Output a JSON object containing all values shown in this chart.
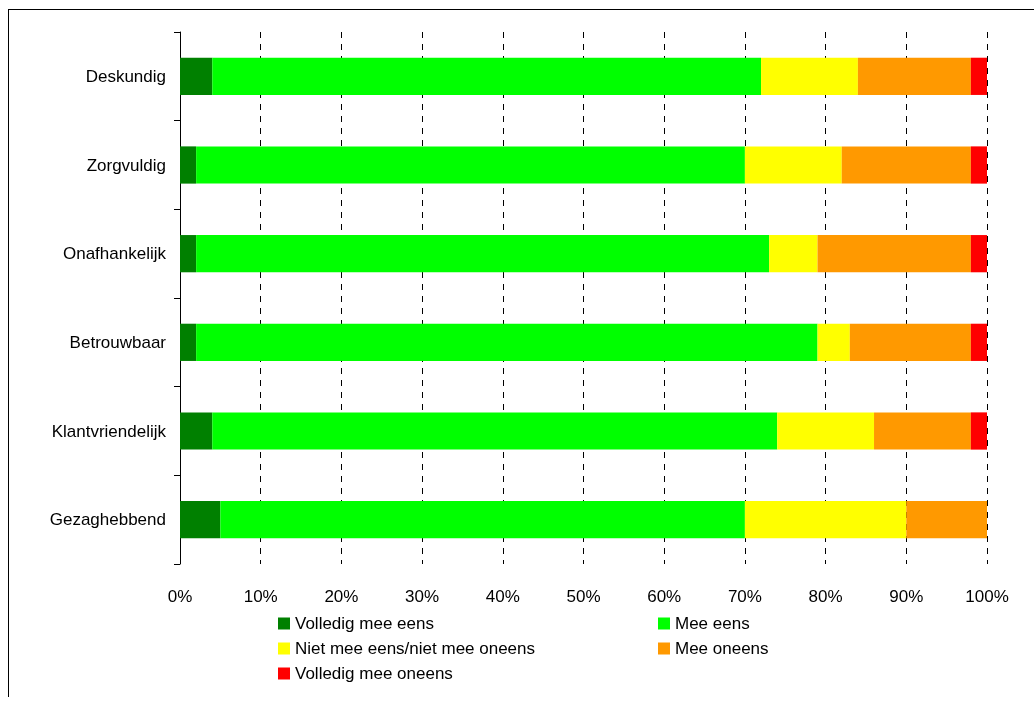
{
  "chart_data": {
    "type": "bar",
    "orientation": "horizontal",
    "stacked": true,
    "categories": [
      "Deskundig",
      "Zorgvuldig",
      "Onafhankelijk",
      "Betrouwbaar",
      "Klantvriendelijk",
      "Gezaghebbend"
    ],
    "series": [
      {
        "name": "Volledig mee eens",
        "color": "#008000",
        "values": [
          4,
          2,
          2,
          2,
          4,
          5
        ]
      },
      {
        "name": "Mee eens",
        "color": "#00ff00",
        "values": [
          68,
          68,
          71,
          77,
          70,
          65
        ]
      },
      {
        "name": "Niet mee eens/niet mee oneens",
        "color": "#ffff00",
        "values": [
          12,
          12,
          6,
          4,
          12,
          20
        ]
      },
      {
        "name": "Mee oneens",
        "color": "#ff9900",
        "values": [
          14,
          16,
          19,
          15,
          12,
          10
        ]
      },
      {
        "name": "Volledig mee oneens",
        "color": "#ff0000",
        "values": [
          2,
          2,
          2,
          2,
          2,
          0
        ]
      }
    ],
    "xlim": [
      0,
      100
    ],
    "xticks": [
      {
        "value": 0,
        "label": "0%"
      },
      {
        "value": 10,
        "label": "10%"
      },
      {
        "value": 20,
        "label": "20%"
      },
      {
        "value": 30,
        "label": "30%"
      },
      {
        "value": 40,
        "label": "40%"
      },
      {
        "value": 50,
        "label": "50%"
      },
      {
        "value": 60,
        "label": "60%"
      },
      {
        "value": 70,
        "label": "70%"
      },
      {
        "value": 80,
        "label": "80%"
      },
      {
        "value": 90,
        "label": "90%"
      },
      {
        "value": 100,
        "label": "100%"
      }
    ],
    "grid": "x",
    "legend": "bottom"
  }
}
